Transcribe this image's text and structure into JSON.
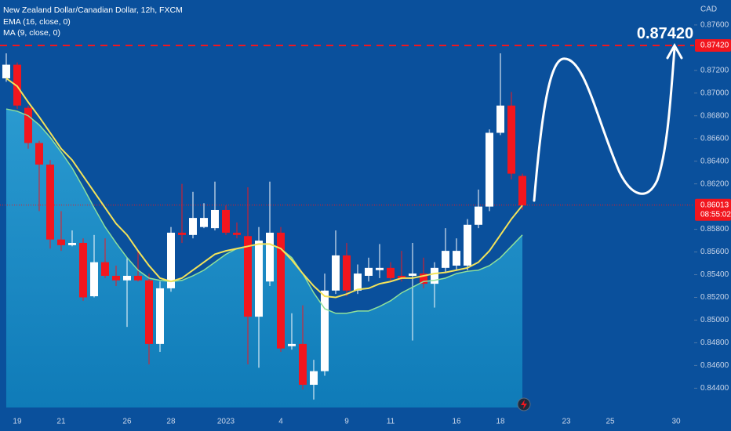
{
  "chart_data": {
    "type": "candlestick",
    "title": "New Zealand Dollar/Canadian Dollar, 12h, FXCM",
    "y_axis_label": "CAD",
    "up_color": "#ffffff",
    "down_color": "#f2161e",
    "candles": [
      [
        0.8713,
        0.8735,
        0.871,
        0.8725
      ],
      [
        0.8725,
        0.8727,
        0.8686,
        0.8689
      ],
      [
        0.8687,
        0.8689,
        0.8651,
        0.8656
      ],
      [
        0.8656,
        0.8658,
        0.8596,
        0.8637
      ],
      [
        0.8637,
        0.8641,
        0.8563,
        0.8571
      ],
      [
        0.8571,
        0.8596,
        0.8561,
        0.8566
      ],
      [
        0.8566,
        0.8579,
        0.8565,
        0.8568
      ],
      [
        0.8568,
        0.8572,
        0.8517,
        0.852
      ],
      [
        0.8521,
        0.8575,
        0.852,
        0.8551
      ],
      [
        0.8551,
        0.8572,
        0.8537,
        0.8539
      ],
      [
        0.8539,
        0.8548,
        0.853,
        0.8535
      ],
      [
        0.8535,
        0.8555,
        0.8494,
        0.8539
      ],
      [
        0.8539,
        0.8561,
        0.8534,
        0.8535
      ],
      [
        0.8535,
        0.8541,
        0.8461,
        0.8479
      ],
      [
        0.8479,
        0.8534,
        0.8472,
        0.8528
      ],
      [
        0.8528,
        0.8582,
        0.8525,
        0.8577
      ],
      [
        0.8577,
        0.862,
        0.8568,
        0.8575
      ],
      [
        0.8575,
        0.8613,
        0.8572,
        0.859
      ],
      [
        0.8582,
        0.8603,
        0.8581,
        0.859
      ],
      [
        0.8581,
        0.8622,
        0.8579,
        0.8597
      ],
      [
        0.8597,
        0.8601,
        0.8575,
        0.8577
      ],
      [
        0.8577,
        0.8586,
        0.8572,
        0.8575
      ],
      [
        0.8574,
        0.8617,
        0.8461,
        0.8503
      ],
      [
        0.8503,
        0.8582,
        0.8458,
        0.857
      ],
      [
        0.8534,
        0.8622,
        0.853,
        0.8577
      ],
      [
        0.8577,
        0.8582,
        0.8472,
        0.8475
      ],
      [
        0.8477,
        0.8506,
        0.8474,
        0.8479
      ],
      [
        0.8479,
        0.8513,
        0.8439,
        0.8443
      ],
      [
        0.8443,
        0.8465,
        0.843,
        0.8455
      ],
      [
        0.8455,
        0.8541,
        0.8451,
        0.8526
      ],
      [
        0.8526,
        0.8579,
        0.8523,
        0.8557
      ],
      [
        0.8557,
        0.8568,
        0.8521,
        0.8526
      ],
      [
        0.8526,
        0.8549,
        0.8523,
        0.8541
      ],
      [
        0.8539,
        0.8555,
        0.8534,
        0.8546
      ],
      [
        0.8544,
        0.8567,
        0.8537,
        0.8546
      ],
      [
        0.8546,
        0.8551,
        0.8534,
        0.8537
      ],
      [
        0.8539,
        0.8561,
        0.8534,
        0.8537
      ],
      [
        0.8539,
        0.8568,
        0.8482,
        0.8541
      ],
      [
        0.8541,
        0.8555,
        0.8528,
        0.8532
      ],
      [
        0.8532,
        0.8551,
        0.8511,
        0.8546
      ],
      [
        0.8546,
        0.8581,
        0.8542,
        0.8561
      ],
      [
        0.8548,
        0.8572,
        0.8544,
        0.8561
      ],
      [
        0.8548,
        0.8589,
        0.8544,
        0.8584
      ],
      [
        0.8584,
        0.8615,
        0.8581,
        0.86
      ],
      [
        0.86,
        0.8668,
        0.8596,
        0.8665
      ],
      [
        0.8665,
        0.8735,
        0.8663,
        0.8689
      ],
      [
        0.8689,
        0.8701,
        0.8624,
        0.8629
      ],
      [
        0.8627,
        0.8629,
        0.8597,
        0.8601
      ]
    ],
    "series": [
      {
        "name": "EMA (16, close, 0)",
        "color": "#f3e35a",
        "values": [
          0.8713,
          0.8706,
          0.8692,
          0.8679,
          0.8665,
          0.8651,
          0.8641,
          0.8627,
          0.8613,
          0.8599,
          0.8585,
          0.8575,
          0.8561,
          0.8548,
          0.8537,
          0.8534,
          0.8537,
          0.8544,
          0.8551,
          0.8558,
          0.8561,
          0.8563,
          0.8565,
          0.8567,
          0.8567,
          0.8563,
          0.8553,
          0.8541,
          0.853,
          0.8521,
          0.852,
          0.8523,
          0.8527,
          0.8528,
          0.8532,
          0.8534,
          0.8537,
          0.8537,
          0.8539,
          0.8541,
          0.8542,
          0.8544,
          0.8546,
          0.8551,
          0.8561,
          0.8575,
          0.8589,
          0.8601
        ]
      },
      {
        "name": "MA (9, close, 0)",
        "color": "#8fe09a",
        "values": [
          0.8686,
          0.8684,
          0.868,
          0.8672,
          0.8661,
          0.8648,
          0.8634,
          0.8617,
          0.8599,
          0.8582,
          0.8568,
          0.8555,
          0.8544,
          0.8537,
          0.8535,
          0.8534,
          0.8535,
          0.8539,
          0.8544,
          0.8551,
          0.8558,
          0.8563,
          0.8565,
          0.8567,
          0.8567,
          0.8563,
          0.8555,
          0.8541,
          0.8524,
          0.851,
          0.8506,
          0.8506,
          0.8508,
          0.8508,
          0.8512,
          0.8517,
          0.8524,
          0.8529,
          0.8534,
          0.8535,
          0.8537,
          0.8541,
          0.8543,
          0.8544,
          0.8548,
          0.8555,
          0.8565,
          0.8575
        ]
      }
    ],
    "xlim": [
      -0.57,
      62.64
    ],
    "xticks": [
      {
        "value": 1,
        "label": "19"
      },
      {
        "value": 5,
        "label": "21"
      },
      {
        "value": 11,
        "label": "26"
      },
      {
        "value": 15,
        "label": "28"
      },
      {
        "value": 20,
        "label": "2023"
      },
      {
        "value": 25,
        "label": "4"
      },
      {
        "value": 31,
        "label": "9"
      },
      {
        "value": 35,
        "label": "11"
      },
      {
        "value": 41,
        "label": "16"
      },
      {
        "value": 45,
        "label": "18"
      },
      {
        "value": 51,
        "label": "23"
      },
      {
        "value": 55,
        "label": "25"
      },
      {
        "value": 61,
        "label": "30"
      }
    ],
    "ylim": [
      0.8423,
      0.8782
    ],
    "yticks": [
      {
        "value": 0.876,
        "label": "0.87600"
      },
      {
        "value": 0.872,
        "label": "0.87200"
      },
      {
        "value": 0.87,
        "label": "0.87000"
      },
      {
        "value": 0.868,
        "label": "0.86800"
      },
      {
        "value": 0.866,
        "label": "0.86600"
      },
      {
        "value": 0.864,
        "label": "0.86400"
      },
      {
        "value": 0.862,
        "label": "0.86200"
      },
      {
        "value": 0.858,
        "label": "0.85800"
      },
      {
        "value": 0.856,
        "label": "0.85600"
      },
      {
        "value": 0.854,
        "label": "0.85400"
      },
      {
        "value": 0.852,
        "label": "0.85200"
      },
      {
        "value": 0.85,
        "label": "0.85000"
      },
      {
        "value": 0.848,
        "label": "0.84800"
      },
      {
        "value": 0.846,
        "label": "0.84600"
      },
      {
        "value": 0.844,
        "label": "0.84400"
      }
    ],
    "target": {
      "value": 0.8742,
      "label": "0.87420"
    },
    "last_price": {
      "value": 0.86013,
      "label": "0.86013"
    },
    "countdown": "08:55:02"
  }
}
